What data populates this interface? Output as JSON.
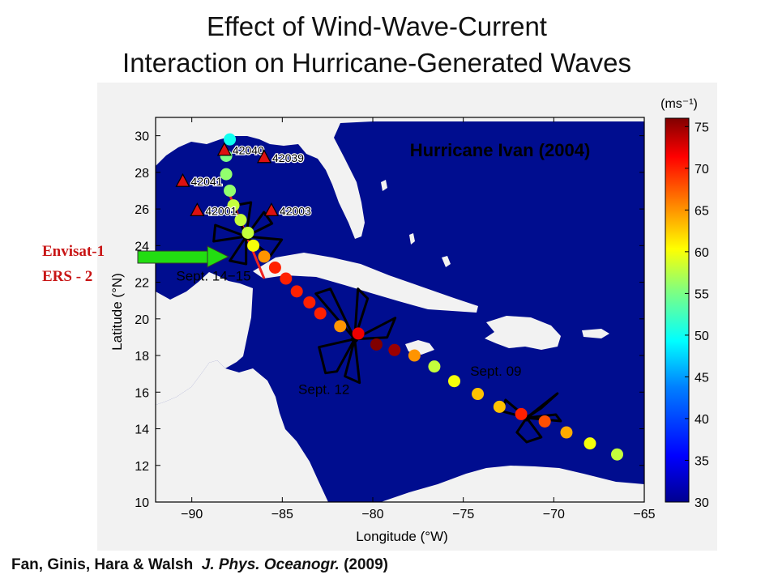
{
  "title_lines": [
    "Effect of Wind-Wave-Current",
    "Interaction on Hurricane-Generated Waves"
  ],
  "citation": {
    "authors": "Fan, Ginis, Hara & Walsh",
    "journal": "J. Phys. Oceanogr.",
    "year": "(2009)"
  },
  "satellites": [
    "Envisat-1",
    "ERS - 2"
  ],
  "colors": {
    "ocean": "#000d8f",
    "land": "#f2f2f2",
    "buoy": "#dd1111",
    "arrow": "#22dd11",
    "track_line": "#ee2222"
  },
  "chart_data": {
    "type": "scatter",
    "title": "Hurricane Ivan (2004)",
    "xlabel": "Longitude (°W)",
    "ylabel": "Latitude (°N)",
    "xlim": [
      -92,
      -65
    ],
    "ylim": [
      10,
      31
    ],
    "xticks": [
      -90,
      -85,
      -80,
      -75,
      -70,
      -65
    ],
    "yticks": [
      10,
      12,
      14,
      16,
      18,
      20,
      22,
      24,
      26,
      28,
      30
    ],
    "colorbar": {
      "label": "(ms⁻¹)",
      "range": [
        30,
        76
      ],
      "ticks": [
        30,
        35,
        40,
        45,
        50,
        55,
        60,
        65,
        70,
        75
      ]
    },
    "track_wind_speed_points": [
      {
        "lon": -66.5,
        "lat": 12.6,
        "wind": 58
      },
      {
        "lon": -68.0,
        "lat": 13.2,
        "wind": 60
      },
      {
        "lon": -69.3,
        "lat": 13.8,
        "wind": 64
      },
      {
        "lon": -70.5,
        "lat": 14.4,
        "wind": 68
      },
      {
        "lon": -71.8,
        "lat": 14.8,
        "wind": 70
      },
      {
        "lon": -73.0,
        "lat": 15.2,
        "wind": 63
      },
      {
        "lon": -74.2,
        "lat": 15.9,
        "wind": 63
      },
      {
        "lon": -75.5,
        "lat": 16.6,
        "wind": 60
      },
      {
        "lon": -76.6,
        "lat": 17.4,
        "wind": 58
      },
      {
        "lon": -77.7,
        "lat": 18.0,
        "wind": 65
      },
      {
        "lon": -78.8,
        "lat": 18.3,
        "wind": 75
      },
      {
        "lon": -79.8,
        "lat": 18.6,
        "wind": 76
      },
      {
        "lon": -80.8,
        "lat": 19.2,
        "wind": 72
      },
      {
        "lon": -81.8,
        "lat": 19.6,
        "wind": 65
      },
      {
        "lon": -82.9,
        "lat": 20.3,
        "wind": 70
      },
      {
        "lon": -83.5,
        "lat": 20.9,
        "wind": 70
      },
      {
        "lon": -84.2,
        "lat": 21.5,
        "wind": 70
      },
      {
        "lon": -84.8,
        "lat": 22.2,
        "wind": 70
      },
      {
        "lon": -85.4,
        "lat": 22.8,
        "wind": 70
      },
      {
        "lon": -86.0,
        "lat": 23.4,
        "wind": 65
      },
      {
        "lon": -86.6,
        "lat": 24.0,
        "wind": 60
      },
      {
        "lon": -86.9,
        "lat": 24.7,
        "wind": 58
      },
      {
        "lon": -87.3,
        "lat": 25.4,
        "wind": 58
      },
      {
        "lon": -87.7,
        "lat": 26.2,
        "wind": 58
      },
      {
        "lon": -87.9,
        "lat": 27.0,
        "wind": 56
      },
      {
        "lon": -88.1,
        "lat": 27.9,
        "wind": 56
      },
      {
        "lon": -88.1,
        "lat": 28.9,
        "wind": 55
      },
      {
        "lon": -87.9,
        "lat": 29.8,
        "wind": 50
      }
    ],
    "buoys": [
      {
        "id": "42040",
        "lon": -88.2,
        "lat": 29.2
      },
      {
        "id": "42039",
        "lon": -86.0,
        "lat": 28.8
      },
      {
        "id": "42041",
        "lon": -90.5,
        "lat": 27.5
      },
      {
        "id": "42001",
        "lon": -89.7,
        "lat": 25.9
      },
      {
        "id": "42003",
        "lon": -85.6,
        "lat": 25.9
      }
    ],
    "annotations": [
      {
        "text": "Sept. 14−15",
        "lon": -87.0,
        "lat": 24.5,
        "label_lon": -88.8,
        "label_lat": 22.1
      },
      {
        "text": "Sept. 12",
        "lon": -81.0,
        "lat": 18.9,
        "label_lon": -82.7,
        "label_lat": 15.9
      },
      {
        "text": "Sept. 09",
        "lon": -71.5,
        "lat": 14.6,
        "label_lon": -73.2,
        "label_lat": 16.9
      }
    ],
    "satellite_track": [
      {
        "lon": -88.0,
        "lat": 27.0
      },
      {
        "lon": -86.0,
        "lat": 22.2
      }
    ]
  }
}
